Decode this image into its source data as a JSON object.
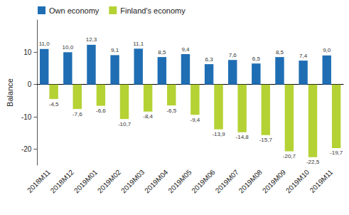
{
  "chart_data": {
    "type": "bar",
    "y_label": "Balance",
    "categories": [
      "2018M11",
      "2018M12",
      "2019M01",
      "2019M02",
      "2019M03",
      "2019M04",
      "2019M05",
      "2019M06",
      "2019M07",
      "2019M08",
      "2019M09",
      "2019M10",
      "2019M11"
    ],
    "series": [
      {
        "name": "Own economy",
        "color": "#1f6eb4",
        "values": [
          11.0,
          10.0,
          12.3,
          9.1,
          11.1,
          8.5,
          9.4,
          6.3,
          7.6,
          6.5,
          8.5,
          7.4,
          9.0
        ],
        "value_labels": [
          "11,0",
          "10,0",
          "12,3",
          "9,1",
          "11,1",
          "8,5",
          "9,4",
          "6,3",
          "7,6",
          "6,5",
          "8,5",
          "7,4",
          "9,0"
        ]
      },
      {
        "name": "Finland's economy",
        "color": "#b4d234",
        "values": [
          -4.5,
          -7.6,
          -6.6,
          -10.7,
          -8.4,
          -6.5,
          -9.4,
          -13.9,
          -14.8,
          -15.7,
          -20.7,
          -22.5,
          -19.7
        ],
        "value_labels": [
          "-4,5",
          "-7,6",
          "-6,6",
          "-10,7",
          "-8,4",
          "-6,5",
          "-9,4",
          "-13,9",
          "-14,8",
          "-15,7",
          "-20,7",
          "-22,5",
          "-19,7"
        ]
      }
    ],
    "ylim": [
      -25,
      20
    ],
    "yticks": [
      -20,
      -10,
      0,
      10
    ],
    "grid": false,
    "legend": "top-left",
    "data_labels": true
  }
}
